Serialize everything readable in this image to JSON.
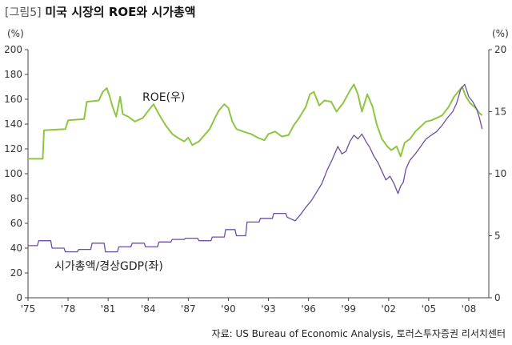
{
  "figure": {
    "tag": "[그림5]",
    "title": "미국 시장의 ROE와 시가총액",
    "source": "자료: US Bureau of Economic Analysis, 토러스투자증권 리서치센터"
  },
  "chart_data": {
    "type": "line",
    "title": "미국 시장의 ROE와 시가총액",
    "left_axis": {
      "unit": "(%)",
      "range": [
        0,
        200
      ],
      "ticks": [
        0,
        20,
        40,
        60,
        80,
        100,
        120,
        140,
        160,
        180,
        200
      ]
    },
    "right_axis": {
      "unit": "(%)",
      "range": [
        0,
        20
      ],
      "ticks": [
        0,
        5,
        10,
        15,
        20
      ]
    },
    "x_axis": {
      "range": [
        1975,
        2009.5
      ],
      "ticks": [
        1975,
        1978,
        1981,
        1984,
        1987,
        1990,
        1993,
        1996,
        1999,
        2002,
        2005,
        2008
      ],
      "tick_labels": [
        "'75",
        "'78",
        "'81",
        "'84",
        "'87",
        "'90",
        "'93",
        "'96",
        "'99",
        "'02",
        "'05",
        "'08"
      ]
    },
    "grid": false,
    "series": [
      {
        "name": "ROE(우)",
        "axis": "right",
        "color": "#8dc63f",
        "points": [
          [
            1975.0,
            11.2
          ],
          [
            1976.1,
            11.2
          ],
          [
            1976.2,
            13.5
          ],
          [
            1977.8,
            13.6
          ],
          [
            1978.0,
            14.3
          ],
          [
            1979.2,
            14.4
          ],
          [
            1979.4,
            15.8
          ],
          [
            1980.3,
            15.9
          ],
          [
            1980.6,
            16.6
          ],
          [
            1980.9,
            16.9
          ],
          [
            1981.1,
            16.3
          ],
          [
            1981.3,
            15.5
          ],
          [
            1981.6,
            14.6
          ],
          [
            1981.9,
            16.2
          ],
          [
            1982.1,
            14.8
          ],
          [
            1982.5,
            14.6
          ],
          [
            1983.0,
            14.2
          ],
          [
            1983.6,
            14.5
          ],
          [
            1984.1,
            15.2
          ],
          [
            1984.4,
            15.6
          ],
          [
            1984.8,
            14.8
          ],
          [
            1985.3,
            13.9
          ],
          [
            1985.8,
            13.2
          ],
          [
            1986.2,
            12.9
          ],
          [
            1986.7,
            12.6
          ],
          [
            1987.0,
            12.9
          ],
          [
            1987.3,
            12.3
          ],
          [
            1987.8,
            12.6
          ],
          [
            1988.2,
            13.1
          ],
          [
            1988.6,
            13.6
          ],
          [
            1989.0,
            14.5
          ],
          [
            1989.3,
            15.1
          ],
          [
            1989.7,
            15.6
          ],
          [
            1990.0,
            15.3
          ],
          [
            1990.3,
            14.2
          ],
          [
            1990.6,
            13.6
          ],
          [
            1991.1,
            13.4
          ],
          [
            1991.7,
            13.2
          ],
          [
            1992.2,
            12.9
          ],
          [
            1992.7,
            12.7
          ],
          [
            1993.0,
            13.2
          ],
          [
            1993.5,
            13.4
          ],
          [
            1994.0,
            13.0
          ],
          [
            1994.5,
            13.1
          ],
          [
            1994.9,
            13.9
          ],
          [
            1995.3,
            14.5
          ],
          [
            1995.8,
            15.4
          ],
          [
            1996.1,
            16.4
          ],
          [
            1996.4,
            16.6
          ],
          [
            1996.8,
            15.5
          ],
          [
            1997.2,
            15.9
          ],
          [
            1997.7,
            15.8
          ],
          [
            1998.1,
            15.0
          ],
          [
            1998.6,
            15.7
          ],
          [
            1999.1,
            16.7
          ],
          [
            1999.4,
            17.2
          ],
          [
            1999.7,
            16.4
          ],
          [
            2000.0,
            15.0
          ],
          [
            2000.4,
            16.4
          ],
          [
            2000.8,
            15.4
          ],
          [
            2001.1,
            14.0
          ],
          [
            2001.5,
            12.8
          ],
          [
            2001.9,
            12.2
          ],
          [
            2002.2,
            11.9
          ],
          [
            2002.6,
            12.2
          ],
          [
            2002.9,
            11.4
          ],
          [
            2003.2,
            12.5
          ],
          [
            2003.6,
            12.8
          ],
          [
            2004.0,
            13.4
          ],
          [
            2004.4,
            13.8
          ],
          [
            2004.8,
            14.2
          ],
          [
            2005.2,
            14.3
          ],
          [
            2005.6,
            14.5
          ],
          [
            2006.0,
            14.7
          ],
          [
            2006.5,
            15.4
          ],
          [
            2006.9,
            16.2
          ],
          [
            2007.2,
            16.6
          ],
          [
            2007.5,
            17.0
          ],
          [
            2007.8,
            16.2
          ],
          [
            2008.1,
            15.7
          ],
          [
            2008.5,
            15.3
          ],
          [
            2008.8,
            14.9
          ],
          [
            2009.0,
            14.7
          ]
        ]
      },
      {
        "name": "시가총액/경상GDP(좌)",
        "axis": "left",
        "color": "#6b4fa3",
        "points": [
          [
            1975.0,
            42
          ],
          [
            1975.7,
            42
          ],
          [
            1975.8,
            46
          ],
          [
            1976.7,
            46
          ],
          [
            1976.8,
            40
          ],
          [
            1977.7,
            40
          ],
          [
            1977.8,
            37
          ],
          [
            1978.7,
            37
          ],
          [
            1978.8,
            39
          ],
          [
            1979.7,
            39
          ],
          [
            1979.8,
            44
          ],
          [
            1980.7,
            44
          ],
          [
            1980.8,
            37
          ],
          [
            1981.7,
            37
          ],
          [
            1981.8,
            41
          ],
          [
            1982.7,
            41
          ],
          [
            1982.8,
            44
          ],
          [
            1983.7,
            44
          ],
          [
            1983.8,
            41
          ],
          [
            1984.7,
            41
          ],
          [
            1984.8,
            45
          ],
          [
            1985.7,
            45
          ],
          [
            1985.8,
            47
          ],
          [
            1986.7,
            47
          ],
          [
            1986.8,
            48
          ],
          [
            1987.7,
            48
          ],
          [
            1987.8,
            46
          ],
          [
            1988.7,
            46
          ],
          [
            1988.8,
            49
          ],
          [
            1989.7,
            49
          ],
          [
            1989.8,
            55
          ],
          [
            1990.5,
            55
          ],
          [
            1990.6,
            50
          ],
          [
            1991.3,
            50
          ],
          [
            1991.4,
            61
          ],
          [
            1992.3,
            61
          ],
          [
            1992.4,
            64
          ],
          [
            1993.3,
            64
          ],
          [
            1993.4,
            68
          ],
          [
            1994.3,
            68
          ],
          [
            1994.4,
            65
          ],
          [
            1995.0,
            62
          ],
          [
            1995.4,
            67
          ],
          [
            1995.8,
            73
          ],
          [
            1996.2,
            78
          ],
          [
            1996.6,
            85
          ],
          [
            1997.0,
            92
          ],
          [
            1997.4,
            103
          ],
          [
            1997.8,
            112
          ],
          [
            1998.2,
            122
          ],
          [
            1998.5,
            116
          ],
          [
            1998.8,
            118
          ],
          [
            1999.1,
            126
          ],
          [
            1999.4,
            131
          ],
          [
            1999.7,
            128
          ],
          [
            2000.0,
            132
          ],
          [
            2000.3,
            126
          ],
          [
            2000.6,
            121
          ],
          [
            2000.9,
            114
          ],
          [
            2001.2,
            109
          ],
          [
            2001.5,
            102
          ],
          [
            2001.8,
            95
          ],
          [
            2002.1,
            98
          ],
          [
            2002.4,
            92
          ],
          [
            2002.7,
            84
          ],
          [
            2002.9,
            90
          ],
          [
            2003.1,
            93
          ],
          [
            2003.3,
            104
          ],
          [
            2003.6,
            111
          ],
          [
            2004.0,
            116
          ],
          [
            2004.4,
            122
          ],
          [
            2004.8,
            128
          ],
          [
            2005.2,
            131
          ],
          [
            2005.6,
            134
          ],
          [
            2006.0,
            139
          ],
          [
            2006.4,
            145
          ],
          [
            2006.8,
            150
          ],
          [
            2007.1,
            157
          ],
          [
            2007.4,
            168
          ],
          [
            2007.7,
            172
          ],
          [
            2008.0,
            162
          ],
          [
            2008.3,
            158
          ],
          [
            2008.6,
            152
          ],
          [
            2008.8,
            145
          ],
          [
            2009.0,
            136
          ]
        ]
      }
    ],
    "annotations": [
      {
        "text": "ROE(우)",
        "series": "ROE(우)"
      },
      {
        "text": "시가총액/경상GDP(좌)",
        "series": "시가총액/경상GDP(좌)"
      }
    ]
  }
}
